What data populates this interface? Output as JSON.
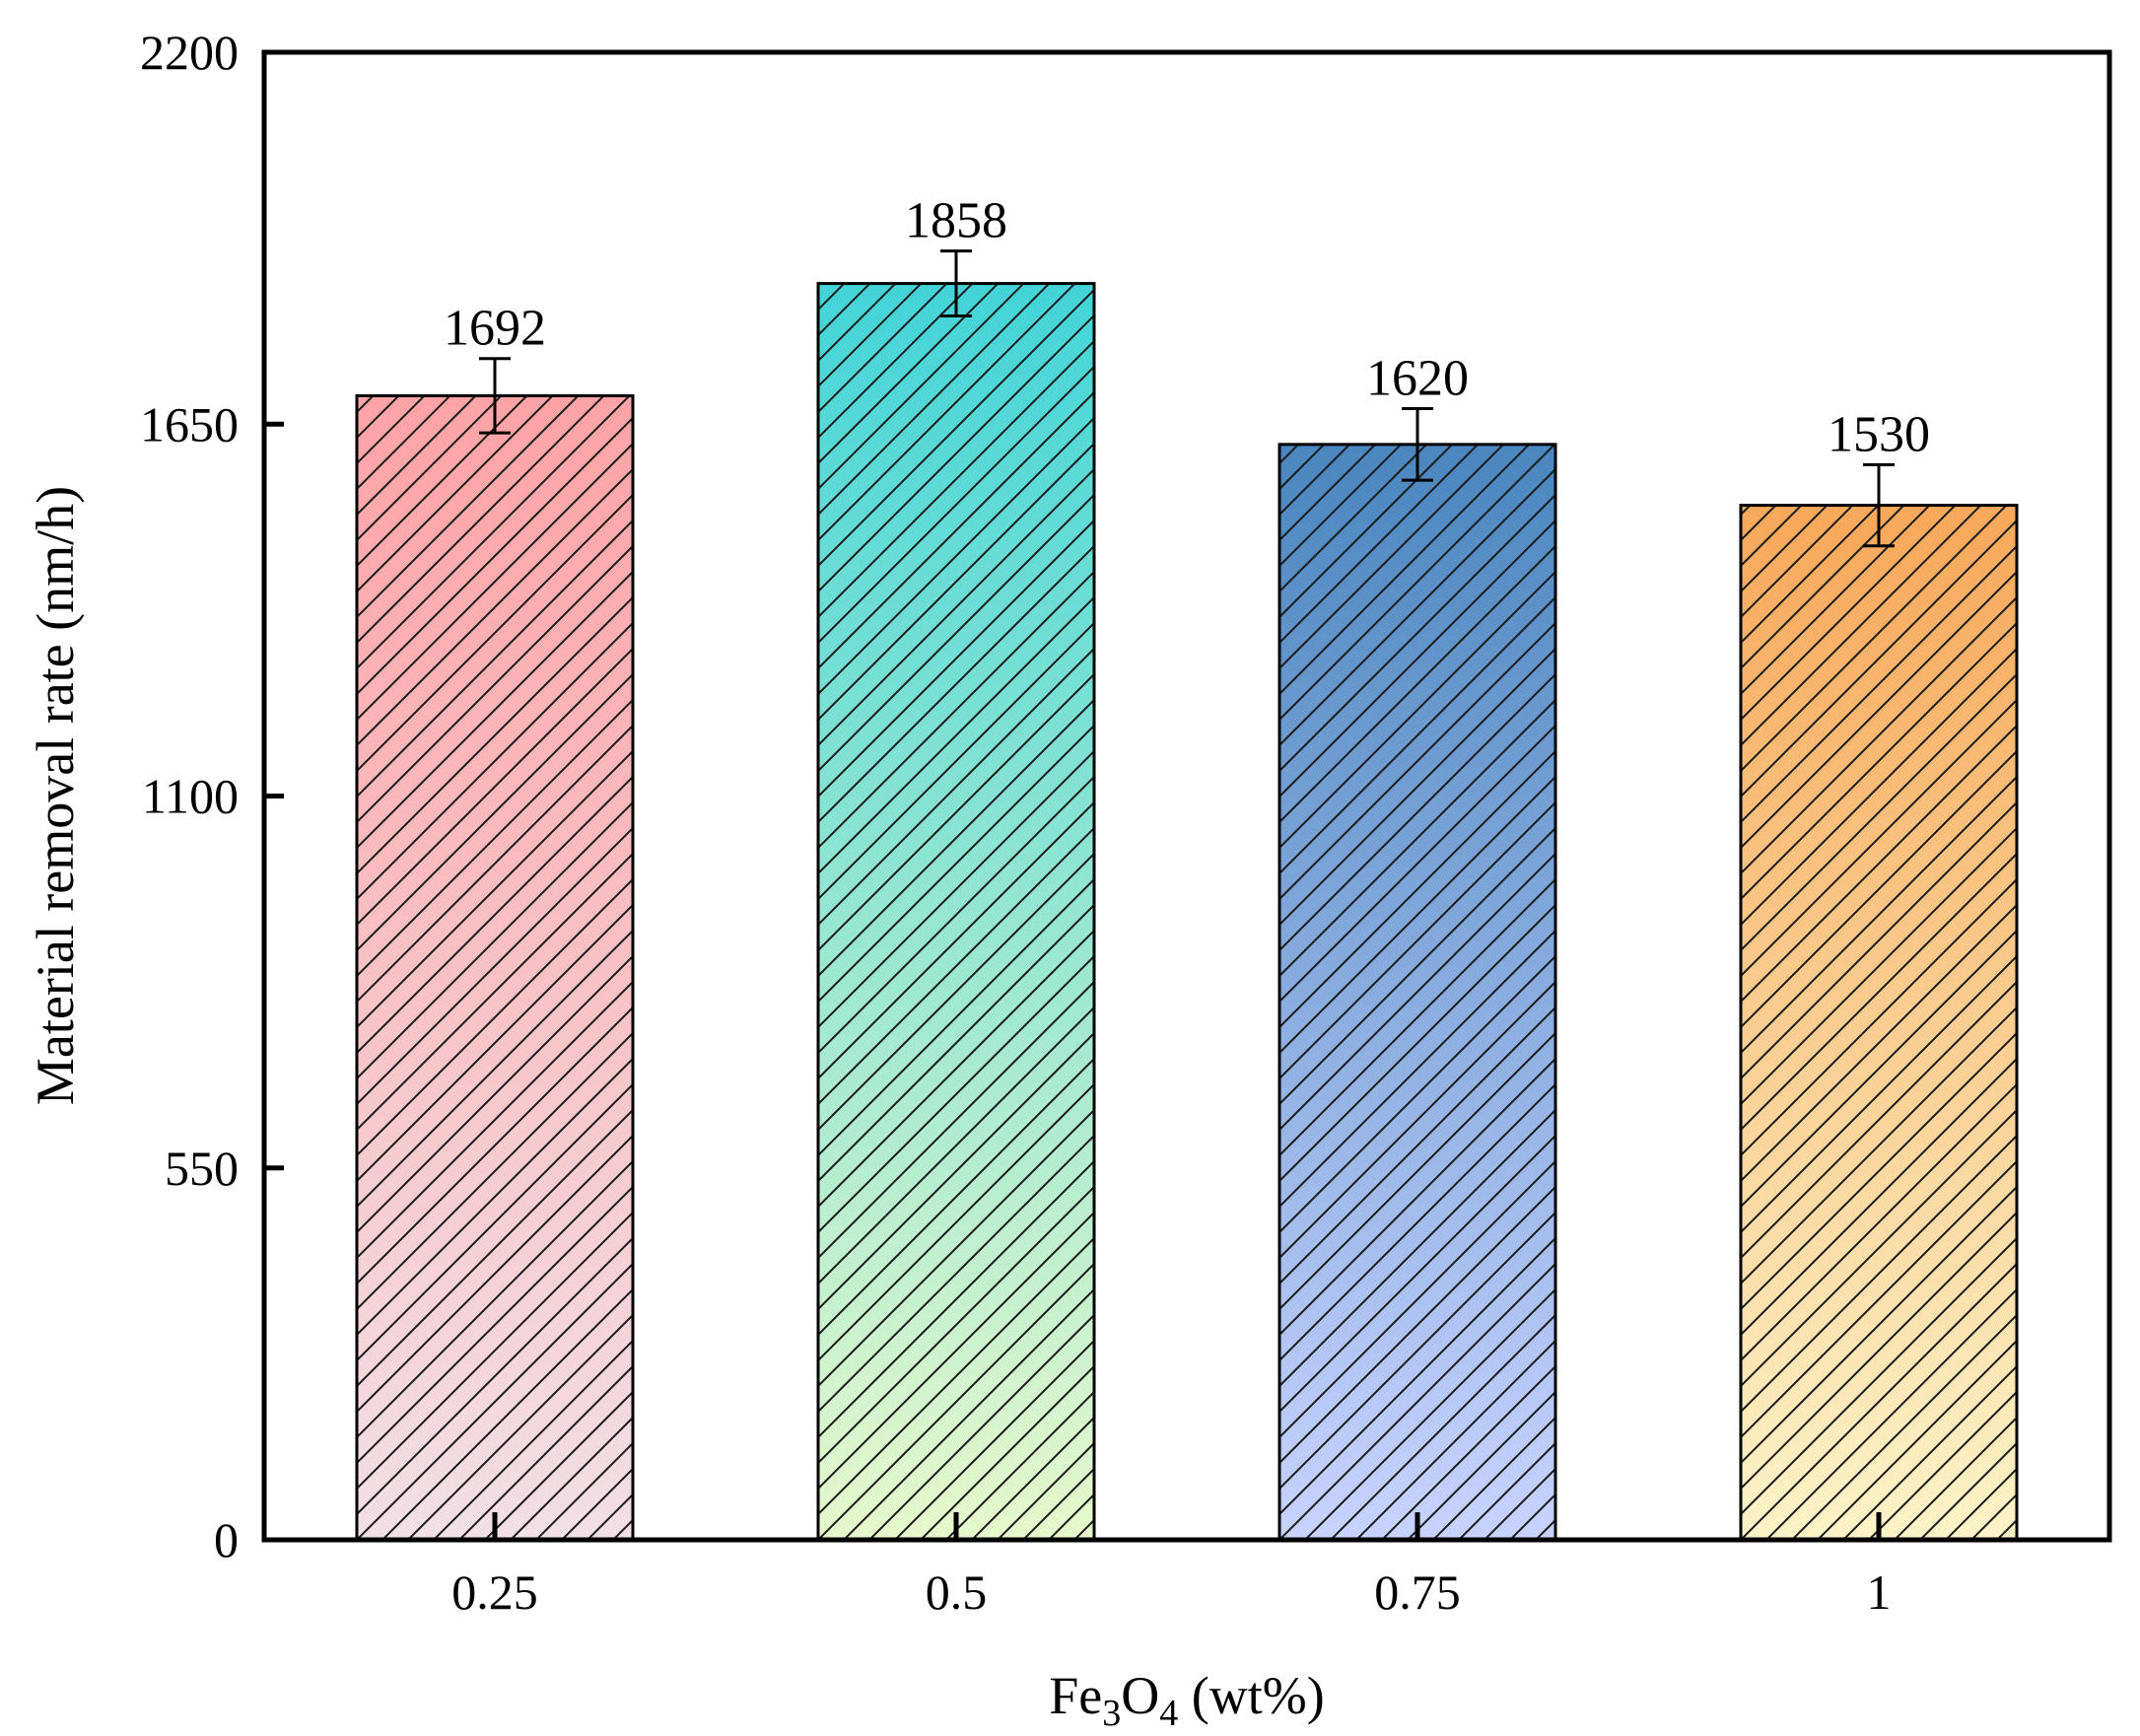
{
  "chart_data": {
    "type": "bar",
    "categories": [
      "0.25",
      "0.5",
      "0.75",
      "1"
    ],
    "values": [
      1692,
      1858,
      1620,
      1530
    ],
    "errors": [
      55,
      48,
      53,
      60
    ],
    "data_labels": [
      "1692",
      "1858",
      "1620",
      "1530"
    ],
    "ylim": [
      0,
      2200
    ],
    "yticks": [
      0,
      550,
      1100,
      1650,
      2200
    ],
    "ytick_labels": [
      "0",
      "550",
      "1100",
      "1650",
      "2200"
    ],
    "ylabel": "Material removal rate (nm/h)",
    "xlabel": {
      "base": "Fe",
      "sub1": "3",
      "mid": "O",
      "sub2": "4",
      "suffix": " (wt%)"
    },
    "bar_style": "vertical gradient fill with diagonal hatching",
    "bar_colors": [
      {
        "top": "#ffa3a6",
        "bottom": "#f2e0e4"
      },
      {
        "top": "#43d4d8",
        "bottom": "#e6f8cc"
      },
      {
        "top": "#4a86bf",
        "bottom": "#c8d3ff"
      },
      {
        "top": "#f8a85a",
        "bottom": "#fcf3c8"
      }
    ],
    "grid": false,
    "legend": "none"
  }
}
